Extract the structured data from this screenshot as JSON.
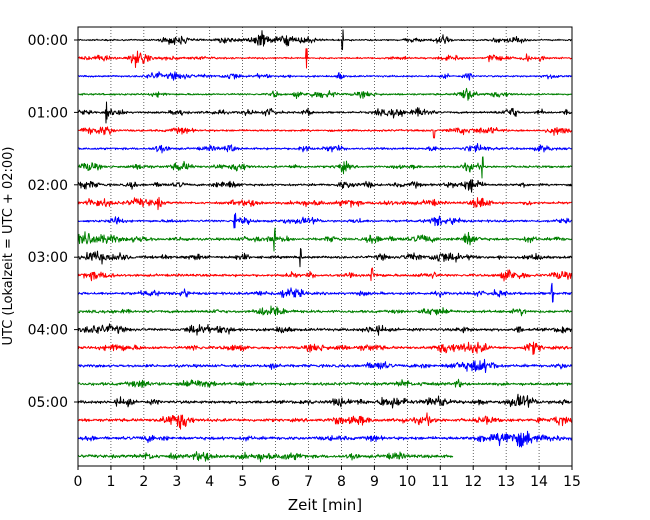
{
  "chart_data": {
    "type": "line",
    "xlabel": "Zeit  [min]",
    "ylabel": "UTC (Lokalzeit = UTC + 02:00)",
    "xlim": [
      0,
      15
    ],
    "x_ticks": [
      0,
      1,
      2,
      3,
      4,
      5,
      6,
      7,
      8,
      9,
      10,
      11,
      12,
      13,
      14,
      15
    ],
    "y_tick_labels": [
      "00:00",
      "01:00",
      "02:00",
      "03:00",
      "04:00",
      "05:00"
    ],
    "grid": {
      "vertical": true,
      "style": "dotted"
    },
    "trace_colors": [
      "#000000",
      "#ff0000",
      "#0000ff",
      "#008000"
    ],
    "trace_minutes": 15,
    "trace_count": 24,
    "last_trace_end_minute": 11.4
  }
}
